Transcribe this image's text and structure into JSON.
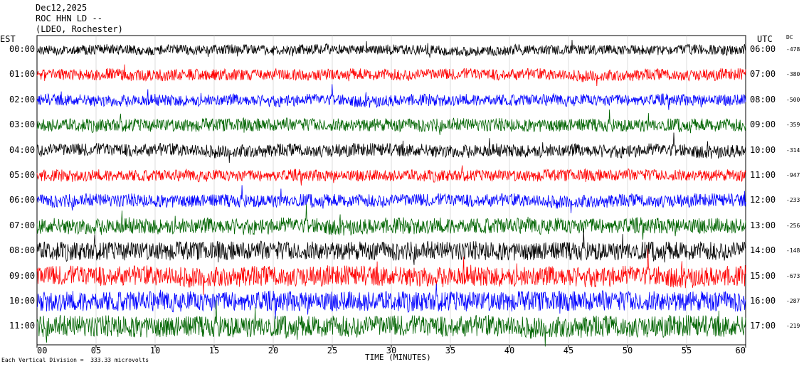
{
  "header": {
    "date": "Dec12,2025",
    "station": "ROC HHN LD --",
    "network": "(LDEO, Rochester)"
  },
  "chart_data": {
    "type": "line",
    "title": "",
    "xlabel": "TIME (MINUTES)",
    "xlim": [
      0,
      60
    ],
    "x_ticks": [
      "00",
      "05",
      "10",
      "15",
      "20",
      "25",
      "30",
      "35",
      "40",
      "45",
      "50",
      "55",
      "60"
    ],
    "left_axis_label": "EST",
    "right_axis_label": "UTC",
    "dc_label": "DC",
    "rows": [
      {
        "est": "00:00",
        "utc": "06:00",
        "dc": "-478",
        "color": "#000000",
        "amp": 7
      },
      {
        "est": "01:00",
        "utc": "07:00",
        "dc": "-380",
        "color": "#ff0000",
        "amp": 8
      },
      {
        "est": "02:00",
        "utc": "08:00",
        "dc": "-500",
        "color": "#0000ff",
        "amp": 8
      },
      {
        "est": "03:00",
        "utc": "09:00",
        "dc": "-359",
        "color": "#006400",
        "amp": 9
      },
      {
        "est": "04:00",
        "utc": "10:00",
        "dc": "-314",
        "color": "#000000",
        "amp": 9
      },
      {
        "est": "05:00",
        "utc": "11:00",
        "dc": "-947",
        "color": "#ff0000",
        "amp": 8
      },
      {
        "est": "06:00",
        "utc": "12:00",
        "dc": "-233",
        "color": "#0000ff",
        "amp": 9
      },
      {
        "est": "07:00",
        "utc": "13:00",
        "dc": "-256",
        "color": "#006400",
        "amp": 11
      },
      {
        "est": "08:00",
        "utc": "14:00",
        "dc": "-148",
        "color": "#000000",
        "amp": 13
      },
      {
        "est": "09:00",
        "utc": "15:00",
        "dc": "-673",
        "color": "#ff0000",
        "amp": 14
      },
      {
        "est": "10:00",
        "utc": "16:00",
        "dc": "-287",
        "color": "#0000ff",
        "amp": 14
      },
      {
        "est": "11:00",
        "utc": "17:00",
        "dc": "-219",
        "color": "#006400",
        "amp": 15
      }
    ],
    "scale_note": "Each Vertical Division =  333.33 microvolts"
  }
}
